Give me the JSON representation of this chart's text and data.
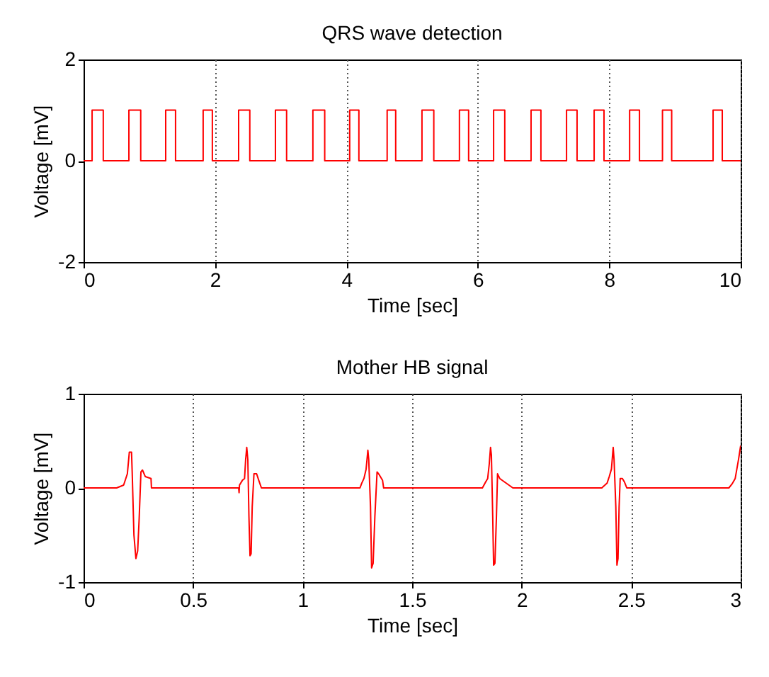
{
  "chart_data": [
    {
      "type": "step",
      "title": "QRS wave detection",
      "xlabel": "Time [sec]",
      "ylabel": "Voltage [mV]",
      "x": [
        0,
        0.13,
        0.3,
        0.69,
        0.87,
        1.25,
        1.4,
        1.82,
        1.96,
        2.36,
        2.53,
        2.92,
        3.09,
        3.49,
        3.67,
        4.05,
        4.19,
        4.62,
        4.75,
        5.15,
        5.33,
        5.72,
        5.86,
        6.24,
        6.41,
        6.81,
        6.96,
        7.35,
        7.51,
        7.77,
        7.92,
        8.31,
        8.46,
        8.81,
        8.95,
        9.58,
        9.72,
        10
      ],
      "series": [
        {
          "color": "#ff0000",
          "values": [
            0,
            1,
            0,
            1,
            0,
            1,
            0,
            1,
            0,
            1,
            0,
            1,
            0,
            1,
            0,
            1,
            0,
            1,
            0,
            1,
            0,
            1,
            0,
            1,
            0,
            1,
            0,
            1,
            0,
            1,
            0,
            1,
            0,
            1,
            0,
            1,
            0,
            0
          ]
        }
      ],
      "xlim": [
        0,
        10
      ],
      "xticks": [
        0,
        2,
        4,
        6,
        8,
        10
      ],
      "ylim": [
        -2,
        2
      ],
      "yticks": [
        -2,
        0,
        2
      ],
      "grid": "x"
    },
    {
      "type": "line",
      "title": "Mother HB signal",
      "xlabel": "Time [sec]",
      "ylabel": "Voltage [mV]",
      "x": [
        0,
        0.151,
        0.183,
        0.2,
        0.209,
        0.219,
        0.222,
        0.23,
        0.239,
        0.247,
        0.254,
        0.262,
        0.269,
        0.282,
        0.308,
        0.31,
        0.708,
        0.71,
        0.712,
        0.725,
        0.735,
        0.74,
        0.745,
        0.75,
        0.755,
        0.76,
        0.765,
        0.77,
        0.778,
        0.79,
        0.8,
        0.812,
        1.262,
        1.27,
        1.28,
        1.29,
        1.298,
        1.302,
        1.31,
        1.315,
        1.322,
        1.33,
        1.34,
        1.35,
        1.365,
        1.37,
        1.821,
        1.835,
        1.845,
        1.852,
        1.858,
        1.862,
        1.868,
        1.872,
        1.878,
        1.885,
        1.89,
        1.9,
        1.96,
        2.366,
        2.39,
        2.4,
        2.41,
        2.418,
        2.422,
        2.43,
        2.435,
        2.44,
        2.445,
        2.45,
        2.46,
        2.47,
        2.48,
        2.946,
        2.96,
        2.975,
        2.99,
        3.0
      ],
      "series": [
        {
          "color": "#ff0000",
          "values": [
            0,
            0,
            0.03,
            0.15,
            0.38,
            0.38,
            0.17,
            -0.5,
            -0.75,
            -0.67,
            -0.32,
            0.17,
            0.19,
            0.12,
            0.1,
            0,
            0,
            -0.05,
            0.03,
            0.08,
            0.1,
            0.3,
            0.43,
            0.3,
            -0.3,
            -0.72,
            -0.7,
            -0.2,
            0.15,
            0.15,
            0.08,
            0,
            0,
            0.05,
            0.1,
            0.2,
            0.4,
            0.3,
            -0.2,
            -0.85,
            -0.8,
            -0.3,
            0.17,
            0.14,
            0.08,
            0,
            0,
            0.06,
            0.1,
            0.25,
            0.43,
            0.35,
            -0.3,
            -0.82,
            -0.8,
            -0.3,
            0.15,
            0.1,
            0,
            0,
            0.05,
            0.12,
            0.2,
            0.43,
            0.3,
            -0.2,
            -0.82,
            -0.75,
            -0.2,
            0.1,
            0.1,
            0.06,
            0,
            0,
            0.04,
            0.1,
            0.3,
            0.45
          ]
        }
      ],
      "xlim": [
        0,
        3
      ],
      "xticks": [
        0,
        0.5,
        1,
        1.5,
        2,
        2.5,
        3
      ],
      "ylim": [
        -1,
        1
      ],
      "yticks": [
        -1,
        0,
        1
      ],
      "grid": "x"
    }
  ]
}
